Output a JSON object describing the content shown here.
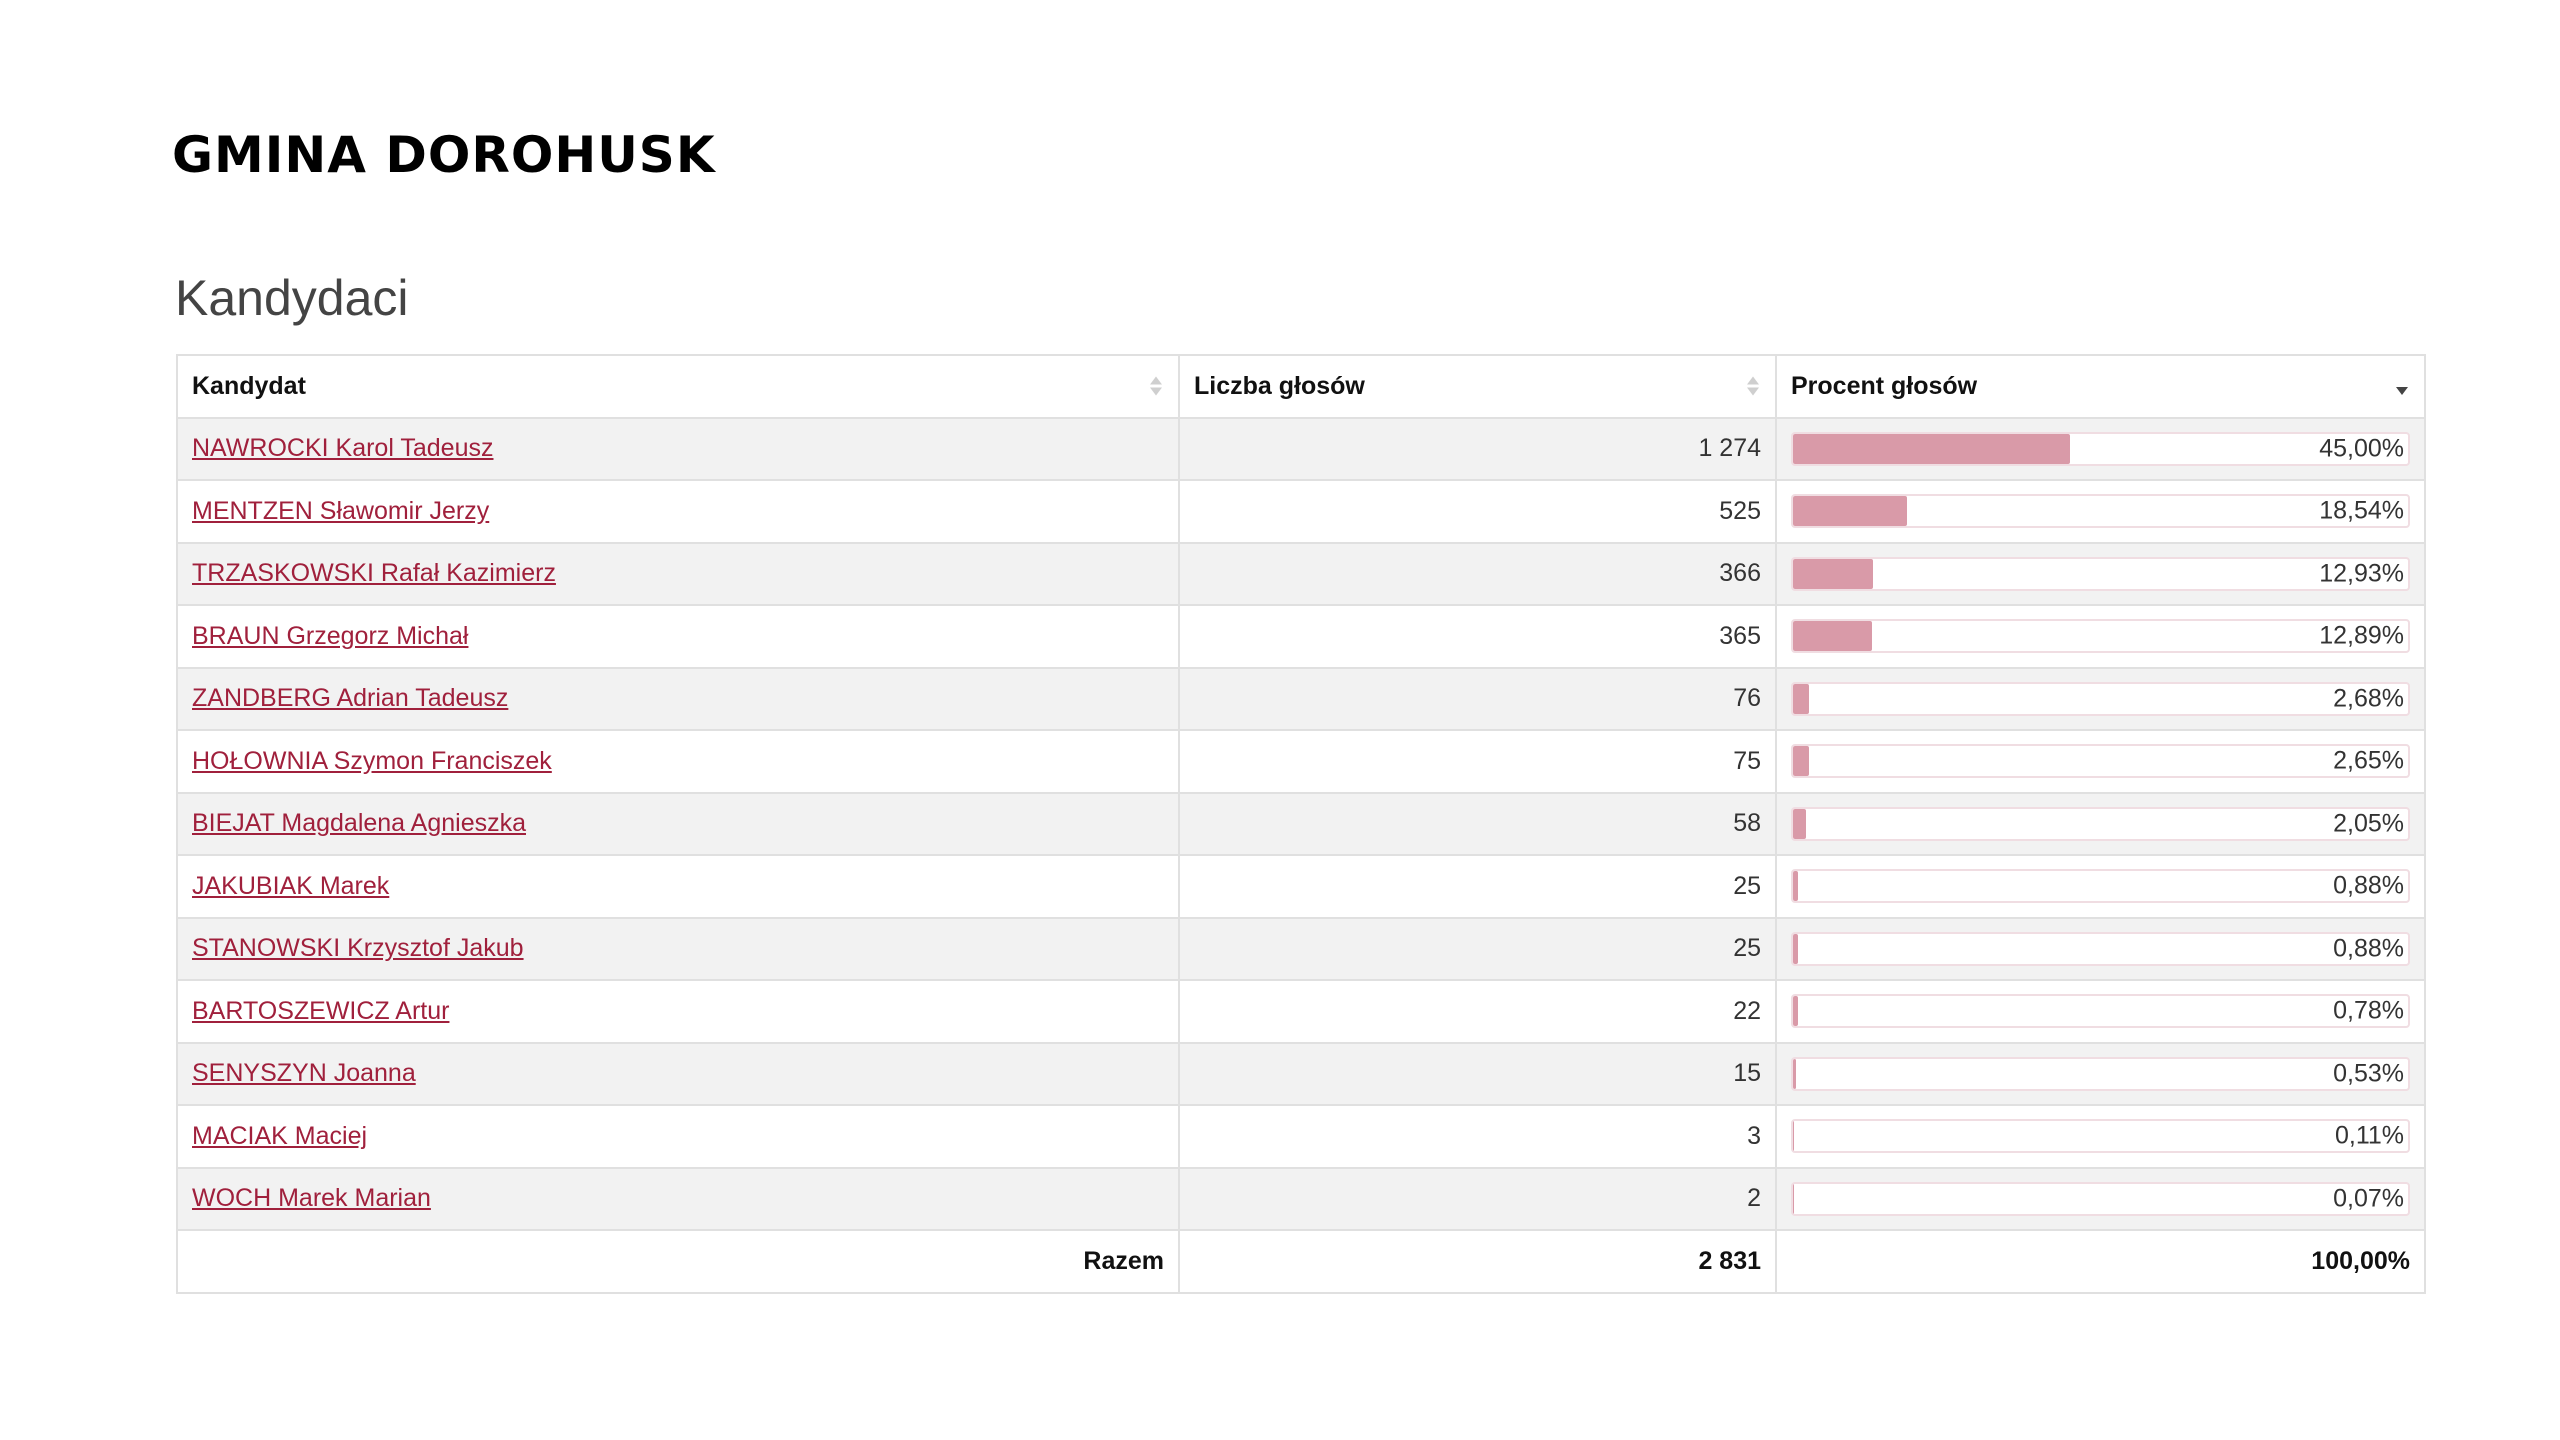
{
  "header": {
    "title": "GMINA DOROHUSK",
    "section_title": "Kandydaci"
  },
  "table": {
    "columns": [
      "Kandydat",
      "Liczba głosów",
      "Procent głosów"
    ],
    "sort": {
      "column": "Procent głosów",
      "direction": "descending"
    },
    "rows": [
      {
        "name": "NAWROCKI Karol Tadeusz",
        "votes": "1 274",
        "percent_label": "45,00%",
        "percent": 45.0
      },
      {
        "name": "MENTZEN Sławomir Jerzy",
        "votes": "525",
        "percent_label": "18,54%",
        "percent": 18.54
      },
      {
        "name": "TRZASKOWSKI Rafał Kazimierz",
        "votes": "366",
        "percent_label": "12,93%",
        "percent": 12.93
      },
      {
        "name": "BRAUN Grzegorz Michał",
        "votes": "365",
        "percent_label": "12,89%",
        "percent": 12.89
      },
      {
        "name": "ZANDBERG Adrian Tadeusz",
        "votes": "76",
        "percent_label": "2,68%",
        "percent": 2.68
      },
      {
        "name": "HOŁOWNIA Szymon Franciszek",
        "votes": "75",
        "percent_label": "2,65%",
        "percent": 2.65
      },
      {
        "name": "BIEJAT Magdalena Agnieszka",
        "votes": "58",
        "percent_label": "2,05%",
        "percent": 2.05
      },
      {
        "name": "JAKUBIAK Marek",
        "votes": "25",
        "percent_label": "0,88%",
        "percent": 0.88
      },
      {
        "name": "STANOWSKI Krzysztof Jakub",
        "votes": "25",
        "percent_label": "0,88%",
        "percent": 0.88
      },
      {
        "name": "BARTOSZEWICZ Artur",
        "votes": "22",
        "percent_label": "0,78%",
        "percent": 0.78
      },
      {
        "name": "SENYSZYN Joanna",
        "votes": "15",
        "percent_label": "0,53%",
        "percent": 0.53
      },
      {
        "name": "MACIAK Maciej",
        "votes": "3",
        "percent_label": "0,11%",
        "percent": 0.11
      },
      {
        "name": "WOCH Marek Marian",
        "votes": "2",
        "percent_label": "0,07%",
        "percent": 0.07
      }
    ],
    "footer": {
      "label": "Razem",
      "votes": "2 831",
      "percent": "100,00%"
    }
  },
  "colors": {
    "link": "#a0203c",
    "bar_fill": "#d99aa8",
    "bar_border": "#f0dde2",
    "row_stripe": "#f2f2f2"
  }
}
